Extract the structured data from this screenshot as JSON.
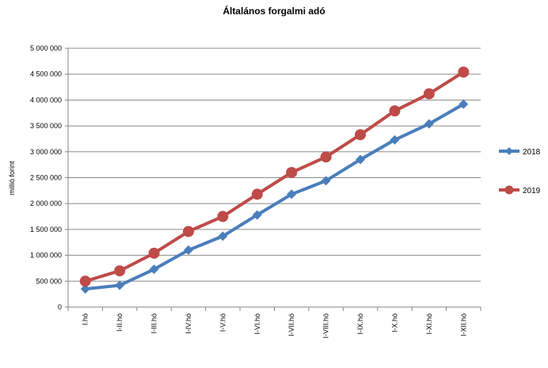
{
  "chart_data": {
    "type": "line",
    "title": "Általános forgalmi adó",
    "ylabel": "millió forint",
    "xlabel": "",
    "categories": [
      "I.hó",
      "I-II.hó",
      "I-III.hó",
      "I-IV.hó",
      "I-V.hó",
      "I-VI.hó",
      "I-VII.hó",
      "I-VIII.hó",
      "I-IX.hó",
      "I-X.hó",
      "I-XI.hó",
      "I-XII.hó"
    ],
    "ylim": [
      0,
      5000000
    ],
    "yticks": [
      0,
      500000,
      1000000,
      1500000,
      2000000,
      2500000,
      3000000,
      3500000,
      4000000,
      4500000,
      5000000
    ],
    "ytick_labels": [
      "0",
      "500 000",
      "1 000 000",
      "1 500 000",
      "2 000 000",
      "2 500 000",
      "3 000 000",
      "3 500 000",
      "4 000 000",
      "4 500 000",
      "5 000 000"
    ],
    "grid": true,
    "legend": "right",
    "series": [
      {
        "name": "2018",
        "color": "#4A7EBB",
        "marker": "diamond",
        "values": [
          350000,
          420000,
          730000,
          1100000,
          1370000,
          1780000,
          2180000,
          2440000,
          2850000,
          3230000,
          3540000,
          3920000
        ]
      },
      {
        "name": "2019",
        "color": "#BE4B48",
        "marker": "circle",
        "values": [
          500000,
          700000,
          1040000,
          1460000,
          1750000,
          2180000,
          2600000,
          2900000,
          3330000,
          3790000,
          4120000,
          4540000
        ]
      }
    ]
  }
}
